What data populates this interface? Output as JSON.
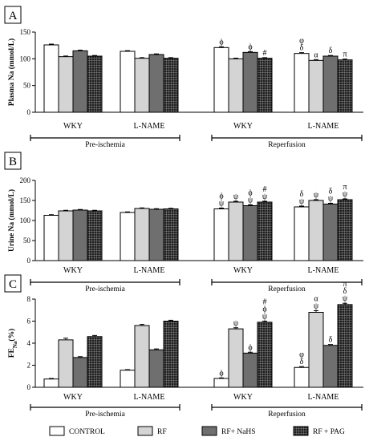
{
  "legend": [
    "CONTROL",
    "RF",
    "RF+ NaHS",
    "RF + PAG"
  ],
  "series_colors": [
    "#ffffff",
    "#d4d4d4",
    "#6f6f6f",
    "#1e1e1e"
  ],
  "chart_data": [
    {
      "type": "bar",
      "panel": "A",
      "ylabel": "Plasma Na (mmol/L)",
      "ylim": [
        0,
        150
      ],
      "yticks": [
        "0",
        "50",
        "100",
        "150"
      ],
      "groups": [
        "WKY",
        "L-NAME",
        "WKY",
        "L-NAME"
      ],
      "periods": [
        "Pre-ischemia",
        "Reperfusion"
      ],
      "series": [
        {
          "name": "CONTROL",
          "values": [
            126,
            114,
            121,
            110
          ],
          "errors": [
            1.5,
            1.2,
            1.5,
            1.5
          ]
        },
        {
          "name": "RF",
          "values": [
            104,
            101,
            100,
            97
          ],
          "errors": [
            1.2,
            1.2,
            1.2,
            1.5
          ]
        },
        {
          "name": "RF+ NaHS",
          "values": [
            115,
            108,
            112,
            105
          ],
          "errors": [
            1.2,
            1.2,
            1.5,
            1.2
          ]
        },
        {
          "name": "RF + PAG",
          "values": [
            105,
            101,
            101,
            98
          ],
          "errors": [
            1.2,
            1.2,
            1.2,
            1.5
          ]
        }
      ],
      "annotations": [
        {
          "group": 2,
          "series": 0,
          "text": [
            "ϕ"
          ]
        },
        {
          "group": 2,
          "series": 2,
          "text": [
            "ϕ"
          ]
        },
        {
          "group": 2,
          "series": 3,
          "text": [
            "#"
          ]
        },
        {
          "group": 3,
          "series": 0,
          "text": [
            "φ",
            "δ"
          ]
        },
        {
          "group": 3,
          "series": 1,
          "text": [
            "α"
          ]
        },
        {
          "group": 3,
          "series": 2,
          "text": [
            "δ"
          ]
        },
        {
          "group": 3,
          "series": 3,
          "text": [
            "π"
          ]
        }
      ]
    },
    {
      "type": "bar",
      "panel": "B",
      "ylabel": "Urine Na (mmol/L)",
      "ylim": [
        0,
        200
      ],
      "yticks": [
        "0",
        "50",
        "100",
        "150",
        "200"
      ],
      "groups": [
        "WKY",
        "L-NAME",
        "WKY",
        "L-NAME"
      ],
      "periods": [
        "Pre-ischemia",
        "Reperfusion"
      ],
      "series": [
        {
          "name": "CONTROL",
          "values": [
            113,
            120,
            129,
            134
          ],
          "errors": [
            1.5,
            1.5,
            2,
            2
          ]
        },
        {
          "name": "RF",
          "values": [
            124,
            130,
            146,
            150
          ],
          "errors": [
            1.5,
            1.5,
            2,
            2
          ]
        },
        {
          "name": "RF+ NaHS",
          "values": [
            126,
            128,
            137,
            141
          ],
          "errors": [
            1.5,
            1.5,
            2,
            2
          ]
        },
        {
          "name": "RF + PAG",
          "values": [
            124,
            129,
            146,
            152
          ],
          "errors": [
            1.5,
            1.5,
            2,
            2
          ]
        }
      ],
      "annotations": [
        {
          "group": 2,
          "series": 0,
          "text": [
            "ϕ",
            "ψ"
          ]
        },
        {
          "group": 2,
          "series": 1,
          "text": [
            "ψ"
          ]
        },
        {
          "group": 2,
          "series": 2,
          "text": [
            "ϕ",
            "ψ"
          ]
        },
        {
          "group": 2,
          "series": 3,
          "text": [
            "#",
            "ψ"
          ]
        },
        {
          "group": 3,
          "series": 0,
          "text": [
            "δ",
            "ψ"
          ]
        },
        {
          "group": 3,
          "series": 1,
          "text": [
            "ψ"
          ]
        },
        {
          "group": 3,
          "series": 2,
          "text": [
            "δ",
            "ψ"
          ]
        },
        {
          "group": 3,
          "series": 3,
          "text": [
            "π",
            "ψ"
          ]
        }
      ]
    },
    {
      "type": "bar",
      "panel": "C",
      "ylabel": "FENa(%)",
      "ylabel_base": "FE",
      "ylabel_sub": "Na",
      "ylabel_tail": "(%)",
      "ylim": [
        0,
        8
      ],
      "yticks": [
        "0",
        "2",
        "4",
        "6",
        "8"
      ],
      "groups": [
        "WKY",
        "L-NAME",
        "WKY",
        "L-NAME"
      ],
      "periods": [
        "Pre-ischemia",
        "Reperfusion"
      ],
      "series": [
        {
          "name": "CONTROL",
          "values": [
            0.75,
            1.55,
            0.8,
            1.8
          ],
          "errors": [
            0.05,
            0.05,
            0.05,
            0.08
          ]
        },
        {
          "name": "RF",
          "values": [
            4.3,
            5.6,
            5.3,
            6.8
          ],
          "errors": [
            0.15,
            0.1,
            0.1,
            0.15
          ]
        },
        {
          "name": "RF+ NaHS",
          "values": [
            2.7,
            3.4,
            3.1,
            3.8
          ],
          "errors": [
            0.08,
            0.08,
            0.08,
            0.08
          ]
        },
        {
          "name": "RF + PAG",
          "values": [
            4.6,
            6.0,
            5.9,
            7.5
          ],
          "errors": [
            0.1,
            0.08,
            0.1,
            0.12
          ]
        }
      ],
      "annotations": [
        {
          "group": 2,
          "series": 0,
          "text": [
            "ϕ"
          ]
        },
        {
          "group": 2,
          "series": 1,
          "text": [
            "ψ"
          ]
        },
        {
          "group": 2,
          "series": 2,
          "text": [
            "ϕ"
          ]
        },
        {
          "group": 2,
          "series": 3,
          "text": [
            "#",
            "ϕ",
            "ψ"
          ]
        },
        {
          "group": 3,
          "series": 0,
          "text": [
            "φ",
            "δ"
          ]
        },
        {
          "group": 3,
          "series": 1,
          "text": [
            "α",
            "ψ"
          ]
        },
        {
          "group": 3,
          "series": 2,
          "text": [
            "δ"
          ]
        },
        {
          "group": 3,
          "series": 3,
          "text": [
            "π",
            "δ",
            "ψ"
          ]
        }
      ]
    }
  ]
}
